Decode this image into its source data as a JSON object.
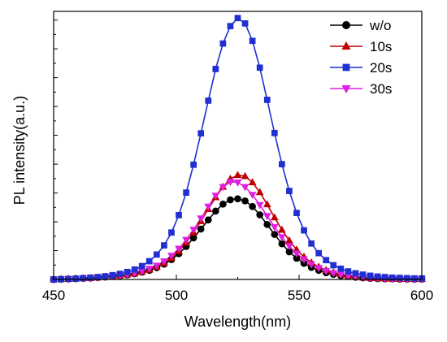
{
  "chart_data": {
    "type": "line",
    "title": "",
    "xlabel": "Wavelength(nm)",
    "ylabel": "PL intensity(a.u.)",
    "xlim": [
      450,
      600
    ],
    "ylim": [
      0,
      1.0
    ],
    "x_ticks": [
      "450",
      "500",
      "550",
      "600"
    ],
    "y_ticks_labeled": false,
    "grid": false,
    "legend_position": "top-right",
    "series": [
      {
        "name": "w/o",
        "color": "#000000",
        "marker": "circle",
        "x": [
          450,
          453,
          456,
          459,
          462,
          465,
          468,
          471,
          474,
          477,
          480,
          483,
          486,
          489,
          492,
          495,
          498,
          501,
          504,
          507,
          510,
          513,
          516,
          519,
          522,
          525,
          528,
          531,
          534,
          537,
          540,
          543,
          546,
          549,
          552,
          555,
          558,
          561,
          564,
          567,
          570,
          573,
          576,
          579,
          582,
          585,
          588,
          591,
          594,
          597,
          600
        ],
        "y": [
          0,
          0.001,
          0.002,
          0.003,
          0.004,
          0.005,
          0.007,
          0.009,
          0.011,
          0.014,
          0.017,
          0.021,
          0.027,
          0.034,
          0.044,
          0.057,
          0.074,
          0.096,
          0.123,
          0.155,
          0.188,
          0.222,
          0.255,
          0.281,
          0.297,
          0.301,
          0.293,
          0.272,
          0.241,
          0.205,
          0.168,
          0.133,
          0.103,
          0.079,
          0.06,
          0.045,
          0.034,
          0.025,
          0.019,
          0.014,
          0.011,
          0.008,
          0.006,
          0.004,
          0.003,
          0.002,
          0.002,
          0.001,
          0.001,
          0.001,
          0.001
        ]
      },
      {
        "name": "10s",
        "color": "#c00000",
        "marker": "triangle-up",
        "x": [
          450,
          453,
          456,
          459,
          462,
          465,
          468,
          471,
          474,
          477,
          480,
          483,
          486,
          489,
          492,
          495,
          498,
          501,
          504,
          507,
          510,
          513,
          516,
          519,
          522,
          525,
          528,
          531,
          534,
          537,
          540,
          543,
          546,
          549,
          552,
          555,
          558,
          561,
          564,
          567,
          570,
          573,
          576,
          579,
          582,
          585,
          588,
          591,
          594,
          597,
          600
        ],
        "y": [
          0,
          0.001,
          0.002,
          0.003,
          0.004,
          0.005,
          0.007,
          0.009,
          0.011,
          0.014,
          0.018,
          0.022,
          0.028,
          0.036,
          0.047,
          0.061,
          0.08,
          0.105,
          0.137,
          0.175,
          0.217,
          0.262,
          0.306,
          0.345,
          0.375,
          0.389,
          0.385,
          0.362,
          0.325,
          0.28,
          0.231,
          0.185,
          0.145,
          0.111,
          0.084,
          0.063,
          0.047,
          0.035,
          0.026,
          0.019,
          0.014,
          0.01,
          0.007,
          0.005,
          0.004,
          0.003,
          0.002,
          0.002,
          0.001,
          0.001,
          0.001
        ]
      },
      {
        "name": "20s",
        "color": "#1f2fd1",
        "marker": "square",
        "x": [
          450,
          453,
          456,
          459,
          462,
          465,
          468,
          471,
          474,
          477,
          480,
          483,
          486,
          489,
          492,
          495,
          498,
          501,
          504,
          507,
          510,
          513,
          516,
          519,
          522,
          525,
          528,
          531,
          534,
          537,
          540,
          543,
          546,
          549,
          552,
          555,
          558,
          561,
          564,
          567,
          570,
          573,
          576,
          579,
          582,
          585,
          588,
          591,
          594,
          597,
          600
        ],
        "y": [
          0,
          0.001,
          0.002,
          0.003,
          0.005,
          0.007,
          0.009,
          0.012,
          0.016,
          0.021,
          0.028,
          0.037,
          0.05,
          0.068,
          0.093,
          0.127,
          0.175,
          0.24,
          0.324,
          0.428,
          0.545,
          0.667,
          0.785,
          0.88,
          0.945,
          0.975,
          0.955,
          0.89,
          0.79,
          0.67,
          0.546,
          0.43,
          0.33,
          0.248,
          0.183,
          0.134,
          0.098,
          0.072,
          0.053,
          0.04,
          0.03,
          0.023,
          0.018,
          0.014,
          0.011,
          0.009,
          0.007,
          0.006,
          0.005,
          0.004,
          0.004
        ]
      },
      {
        "name": "30s",
        "color": "#e01fe0",
        "marker": "triangle-down",
        "x": [
          450,
          453,
          456,
          459,
          462,
          465,
          468,
          471,
          474,
          477,
          480,
          483,
          486,
          489,
          492,
          495,
          498,
          501,
          504,
          507,
          510,
          513,
          516,
          519,
          522,
          525,
          528,
          531,
          534,
          537,
          540,
          543,
          546,
          549,
          552,
          555,
          558,
          561,
          564,
          567,
          570,
          573,
          576,
          579,
          582,
          585,
          588,
          591,
          594,
          597,
          600
        ],
        "y": [
          0,
          0.001,
          0.002,
          0.003,
          0.004,
          0.005,
          0.007,
          0.009,
          0.012,
          0.015,
          0.019,
          0.024,
          0.031,
          0.04,
          0.052,
          0.068,
          0.089,
          0.115,
          0.148,
          0.186,
          0.228,
          0.272,
          0.313,
          0.345,
          0.364,
          0.362,
          0.345,
          0.316,
          0.278,
          0.237,
          0.196,
          0.158,
          0.125,
          0.097,
          0.075,
          0.057,
          0.043,
          0.032,
          0.024,
          0.018,
          0.013,
          0.01,
          0.007,
          0.005,
          0.004,
          0.003,
          0.002,
          0.002,
          0.001,
          0.001,
          0.001
        ]
      }
    ]
  }
}
